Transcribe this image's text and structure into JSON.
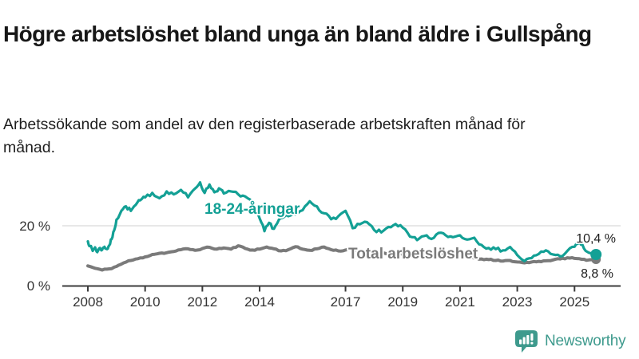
{
  "header": {
    "title": "Högre arbetslöshet bland unga än bland äldre i Gullspång",
    "subtitle": "Arbetssökande som andel av den registerbaserade arbetskraften månad för månad."
  },
  "chart_data": {
    "type": "line",
    "title": "Högre arbetslöshet bland unga än bland äldre i Gullspång",
    "subtitle": "Arbetssökande som andel av den registerbaserade arbetskraften månad för månad.",
    "unit": "%",
    "xlim": [
      2008,
      2025.9
    ],
    "ylim": [
      0,
      36
    ],
    "grid": "horizontal, 20% only",
    "legend_position": "labels next to lines",
    "x_ticks": [
      2008,
      2010,
      2012,
      2014,
      2017,
      2019,
      2021,
      2023,
      2025
    ],
    "x_tick_labels": [
      "2008",
      "2010",
      "2012",
      "2014",
      "2017",
      "2019",
      "2021",
      "2023",
      "2025"
    ],
    "y_ticks": [
      {
        "value": 0,
        "label": "0 %"
      },
      {
        "value": 20,
        "label": "20 %"
      }
    ],
    "y_gridlines": [
      20
    ],
    "series": [
      {
        "name": "Total arbetslöshet",
        "color": "#7A7A7A",
        "end_label": "8,8 %",
        "end_value": 8.8,
        "points": [
          [
            2008.0,
            6.6
          ],
          [
            2008.25,
            5.8
          ],
          [
            2008.5,
            5.2
          ],
          [
            2008.75,
            5.6
          ],
          [
            2009.0,
            6.4
          ],
          [
            2009.25,
            7.6
          ],
          [
            2009.5,
            8.4
          ],
          [
            2009.75,
            9.0
          ],
          [
            2010.0,
            9.6
          ],
          [
            2010.25,
            10.4
          ],
          [
            2010.5,
            10.8
          ],
          [
            2010.75,
            11.0
          ],
          [
            2011.0,
            11.4
          ],
          [
            2011.25,
            12.0
          ],
          [
            2011.5,
            12.3
          ],
          [
            2011.75,
            11.8
          ],
          [
            2012.0,
            12.4
          ],
          [
            2012.25,
            12.8
          ],
          [
            2012.5,
            12.2
          ],
          [
            2012.75,
            12.6
          ],
          [
            2013.0,
            12.2
          ],
          [
            2013.25,
            13.3
          ],
          [
            2013.5,
            12.4
          ],
          [
            2013.75,
            11.9
          ],
          [
            2014.0,
            12.2
          ],
          [
            2014.25,
            12.9
          ],
          [
            2014.5,
            12.3
          ],
          [
            2014.75,
            11.6
          ],
          [
            2015.0,
            12.0
          ],
          [
            2015.25,
            13.0
          ],
          [
            2015.5,
            12.2
          ],
          [
            2015.75,
            11.8
          ],
          [
            2016.0,
            12.3
          ],
          [
            2016.25,
            12.9
          ],
          [
            2016.5,
            12.0
          ],
          [
            2016.75,
            11.6
          ],
          [
            2017.0,
            11.9
          ],
          [
            2017.25,
            12.3
          ],
          [
            2017.5,
            11.6
          ],
          [
            2017.75,
            11.2
          ],
          [
            2018.0,
            11.4
          ],
          [
            2018.25,
            11.0
          ],
          [
            2018.5,
            10.6
          ],
          [
            2018.75,
            10.9
          ],
          [
            2019.0,
            10.4
          ],
          [
            2019.25,
            10.0
          ],
          [
            2019.5,
            10.3
          ],
          [
            2019.75,
            10.0
          ],
          [
            2020.0,
            10.2
          ],
          [
            2020.25,
            10.8
          ],
          [
            2020.5,
            10.4
          ],
          [
            2020.75,
            10.0
          ],
          [
            2021.0,
            9.8
          ],
          [
            2021.25,
            9.5
          ],
          [
            2021.5,
            9.2
          ],
          [
            2021.75,
            8.9
          ],
          [
            2022.0,
            8.7
          ],
          [
            2022.25,
            8.4
          ],
          [
            2022.5,
            8.2
          ],
          [
            2022.75,
            8.4
          ],
          [
            2023.0,
            7.9
          ],
          [
            2023.25,
            7.6
          ],
          [
            2023.5,
            7.9
          ],
          [
            2023.75,
            8.1
          ],
          [
            2024.0,
            8.3
          ],
          [
            2024.25,
            8.6
          ],
          [
            2024.5,
            8.9
          ],
          [
            2024.75,
            9.3
          ],
          [
            2025.0,
            9.1
          ],
          [
            2025.25,
            8.8
          ],
          [
            2025.5,
            8.6
          ],
          [
            2025.75,
            8.8
          ]
        ]
      },
      {
        "name": "18-24-åringar",
        "color": "#13A095",
        "end_label": "10,4 %",
        "end_value": 10.4,
        "points": [
          [
            2008.0,
            14.8
          ],
          [
            2008.08,
            13.2
          ],
          [
            2008.17,
            11.6
          ],
          [
            2008.25,
            12.8
          ],
          [
            2008.33,
            11.2
          ],
          [
            2008.42,
            12.6
          ],
          [
            2008.5,
            12.0
          ],
          [
            2008.58,
            13.0
          ],
          [
            2008.67,
            12.2
          ],
          [
            2008.75,
            13.5
          ],
          [
            2008.83,
            15.5
          ],
          [
            2008.92,
            18.5
          ],
          [
            2009.0,
            22.0
          ],
          [
            2009.17,
            25.0
          ],
          [
            2009.33,
            26.5
          ],
          [
            2009.5,
            25.0
          ],
          [
            2009.67,
            27.0
          ],
          [
            2009.83,
            28.5
          ],
          [
            2010.0,
            29.5
          ],
          [
            2010.25,
            31.0
          ],
          [
            2010.5,
            29.2
          ],
          [
            2010.75,
            31.5
          ],
          [
            2011.0,
            30.5
          ],
          [
            2011.25,
            32.0
          ],
          [
            2011.5,
            29.5
          ],
          [
            2011.75,
            32.5
          ],
          [
            2011.92,
            34.5
          ],
          [
            2012.08,
            31.0
          ],
          [
            2012.25,
            33.8
          ],
          [
            2012.42,
            31.2
          ],
          [
            2012.58,
            32.5
          ],
          [
            2012.75,
            30.8
          ],
          [
            2013.0,
            31.5
          ],
          [
            2013.25,
            30.5
          ],
          [
            2013.5,
            29.8
          ],
          [
            2013.75,
            27.5
          ],
          [
            2014.0,
            22.5
          ],
          [
            2014.17,
            18.2
          ],
          [
            2014.33,
            21.0
          ],
          [
            2014.5,
            19.0
          ],
          [
            2014.67,
            22.0
          ],
          [
            2014.83,
            22.8
          ],
          [
            2015.0,
            23.2
          ],
          [
            2015.25,
            23.8
          ],
          [
            2015.5,
            25.2
          ],
          [
            2015.75,
            28.2
          ],
          [
            2016.0,
            26.5
          ],
          [
            2016.25,
            24.2
          ],
          [
            2016.5,
            22.2
          ],
          [
            2016.75,
            23.2
          ],
          [
            2017.0,
            25.0
          ],
          [
            2017.25,
            19.2
          ],
          [
            2017.5,
            20.5
          ],
          [
            2017.75,
            21.2
          ],
          [
            2018.0,
            18.6
          ],
          [
            2018.25,
            17.8
          ],
          [
            2018.5,
            19.6
          ],
          [
            2018.75,
            20.6
          ],
          [
            2019.0,
            19.4
          ],
          [
            2019.25,
            16.4
          ],
          [
            2019.5,
            15.2
          ],
          [
            2019.75,
            16.6
          ],
          [
            2020.0,
            15.6
          ],
          [
            2020.25,
            17.6
          ],
          [
            2020.5,
            16.8
          ],
          [
            2020.75,
            16.2
          ],
          [
            2021.0,
            16.8
          ],
          [
            2021.25,
            15.4
          ],
          [
            2021.5,
            16.0
          ],
          [
            2021.75,
            13.6
          ],
          [
            2022.0,
            12.6
          ],
          [
            2022.25,
            12.2
          ],
          [
            2022.5,
            11.8
          ],
          [
            2022.75,
            12.9
          ],
          [
            2023.0,
            10.2
          ],
          [
            2023.25,
            8.2
          ],
          [
            2023.5,
            9.2
          ],
          [
            2023.75,
            10.6
          ],
          [
            2024.0,
            11.8
          ],
          [
            2024.25,
            10.4
          ],
          [
            2024.5,
            9.8
          ],
          [
            2024.75,
            11.6
          ],
          [
            2025.0,
            13.0
          ],
          [
            2025.17,
            14.6
          ],
          [
            2025.33,
            12.4
          ],
          [
            2025.5,
            11.0
          ],
          [
            2025.75,
            10.4
          ]
        ]
      }
    ]
  },
  "colors": {
    "youth_line": "#13A095",
    "total_line": "#7A7A7A",
    "gridline": "#DBDBDB",
    "axis": "#3C3C3C",
    "brand": "#3E9A8D"
  },
  "footer": {
    "brand": "Newsworthy"
  }
}
